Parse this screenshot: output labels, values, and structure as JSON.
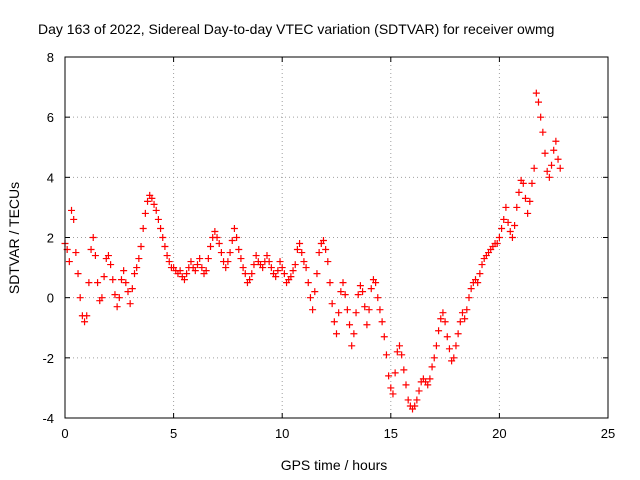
{
  "chart_data": {
    "type": "scatter",
    "title": "Day 163 of 2022, Sidereal Day-to-day VTEC variation (SDTVAR) for receiver owmg",
    "xlabel": "GPS time / hours",
    "ylabel": "SDTVAR / TECUs",
    "xlim": [
      0,
      25
    ],
    "ylim": [
      -4,
      8
    ],
    "x_ticks": [
      "0",
      "5",
      "10",
      "15",
      "20",
      "25"
    ],
    "y_ticks": [
      "-4",
      "-2",
      "0",
      "2",
      "4",
      "6",
      "8"
    ],
    "grid": true,
    "marker": "+",
    "color": "#ff0000",
    "series": [
      {
        "name": "SDTVAR",
        "points": [
          [
            0.0,
            1.8
          ],
          [
            0.1,
            1.6
          ],
          [
            0.2,
            1.2
          ],
          [
            0.3,
            2.9
          ],
          [
            0.4,
            2.6
          ],
          [
            0.5,
            1.5
          ],
          [
            0.6,
            0.8
          ],
          [
            0.7,
            0.0
          ],
          [
            0.8,
            -0.6
          ],
          [
            0.9,
            -0.8
          ],
          [
            1.0,
            -0.6
          ],
          [
            1.1,
            0.5
          ],
          [
            1.2,
            1.6
          ],
          [
            1.3,
            2.0
          ],
          [
            1.4,
            1.4
          ],
          [
            1.5,
            0.5
          ],
          [
            1.6,
            -0.1
          ],
          [
            1.7,
            0.0
          ],
          [
            1.8,
            0.7
          ],
          [
            1.9,
            1.3
          ],
          [
            2.0,
            1.4
          ],
          [
            2.1,
            1.1
          ],
          [
            2.2,
            0.6
          ],
          [
            2.3,
            0.1
          ],
          [
            2.4,
            -0.3
          ],
          [
            2.5,
            0.0
          ],
          [
            2.6,
            0.6
          ],
          [
            2.7,
            0.9
          ],
          [
            2.8,
            0.5
          ],
          [
            2.9,
            0.2
          ],
          [
            3.0,
            -0.2
          ],
          [
            3.1,
            0.3
          ],
          [
            3.2,
            0.8
          ],
          [
            3.3,
            1.0
          ],
          [
            3.4,
            1.3
          ],
          [
            3.5,
            1.7
          ],
          [
            3.6,
            2.3
          ],
          [
            3.7,
            2.8
          ],
          [
            3.8,
            3.2
          ],
          [
            3.9,
            3.4
          ],
          [
            4.0,
            3.3
          ],
          [
            4.1,
            3.1
          ],
          [
            4.2,
            2.9
          ],
          [
            4.3,
            2.6
          ],
          [
            4.4,
            2.3
          ],
          [
            4.5,
            2.0
          ],
          [
            4.6,
            1.7
          ],
          [
            4.7,
            1.4
          ],
          [
            4.8,
            1.2
          ],
          [
            4.9,
            1.0
          ],
          [
            5.0,
            1.0
          ],
          [
            5.1,
            0.9
          ],
          [
            5.2,
            0.8
          ],
          [
            5.3,
            0.9
          ],
          [
            5.4,
            0.7
          ],
          [
            5.5,
            0.6
          ],
          [
            5.6,
            0.8
          ],
          [
            5.7,
            1.0
          ],
          [
            5.8,
            1.2
          ],
          [
            5.9,
            1.0
          ],
          [
            6.0,
            0.9
          ],
          [
            6.1,
            1.1
          ],
          [
            6.2,
            1.3
          ],
          [
            6.3,
            1.0
          ],
          [
            6.4,
            0.8
          ],
          [
            6.5,
            0.9
          ],
          [
            6.6,
            1.3
          ],
          [
            6.7,
            1.7
          ],
          [
            6.8,
            2.0
          ],
          [
            6.9,
            2.2
          ],
          [
            7.0,
            2.0
          ],
          [
            7.1,
            1.8
          ],
          [
            7.2,
            1.5
          ],
          [
            7.3,
            1.2
          ],
          [
            7.4,
            1.0
          ],
          [
            7.5,
            1.2
          ],
          [
            7.6,
            1.5
          ],
          [
            7.7,
            1.9
          ],
          [
            7.8,
            2.3
          ],
          [
            7.9,
            2.0
          ],
          [
            8.0,
            1.6
          ],
          [
            8.1,
            1.3
          ],
          [
            8.2,
            1.0
          ],
          [
            8.3,
            0.8
          ],
          [
            8.4,
            0.5
          ],
          [
            8.5,
            0.6
          ],
          [
            8.6,
            0.8
          ],
          [
            8.7,
            1.1
          ],
          [
            8.8,
            1.4
          ],
          [
            8.9,
            1.2
          ],
          [
            9.0,
            1.1
          ],
          [
            9.1,
            1.0
          ],
          [
            9.2,
            1.2
          ],
          [
            9.3,
            1.4
          ],
          [
            9.4,
            1.2
          ],
          [
            9.5,
            1.0
          ],
          [
            9.6,
            0.8
          ],
          [
            9.7,
            0.7
          ],
          [
            9.8,
            0.9
          ],
          [
            9.9,
            1.2
          ],
          [
            10.0,
            1.0
          ],
          [
            10.1,
            0.8
          ],
          [
            10.2,
            0.5
          ],
          [
            10.3,
            0.6
          ],
          [
            10.4,
            0.7
          ],
          [
            10.5,
            0.9
          ],
          [
            10.6,
            1.1
          ],
          [
            10.7,
            1.6
          ],
          [
            10.8,
            1.8
          ],
          [
            10.9,
            1.5
          ],
          [
            11.0,
            1.2
          ],
          [
            11.1,
            1.0
          ],
          [
            11.2,
            0.5
          ],
          [
            11.3,
            0.0
          ],
          [
            11.4,
            -0.4
          ],
          [
            11.5,
            0.2
          ],
          [
            11.6,
            0.8
          ],
          [
            11.7,
            1.5
          ],
          [
            11.8,
            1.8
          ],
          [
            11.9,
            1.9
          ],
          [
            12.0,
            1.6
          ],
          [
            12.1,
            1.2
          ],
          [
            12.2,
            0.5
          ],
          [
            12.3,
            -0.2
          ],
          [
            12.4,
            -0.8
          ],
          [
            12.5,
            -1.2
          ],
          [
            12.6,
            -0.5
          ],
          [
            12.7,
            0.2
          ],
          [
            12.8,
            0.5
          ],
          [
            12.9,
            0.1
          ],
          [
            13.0,
            -0.4
          ],
          [
            13.1,
            -0.9
          ],
          [
            13.2,
            -1.6
          ],
          [
            13.3,
            -1.2
          ],
          [
            13.4,
            -0.5
          ],
          [
            13.5,
            0.1
          ],
          [
            13.6,
            0.4
          ],
          [
            13.7,
            0.2
          ],
          [
            13.8,
            -0.3
          ],
          [
            13.9,
            -0.9
          ],
          [
            14.0,
            -0.4
          ],
          [
            14.1,
            0.3
          ],
          [
            14.2,
            0.6
          ],
          [
            14.3,
            0.5
          ],
          [
            14.4,
            0.0
          ],
          [
            14.5,
            -0.4
          ],
          [
            14.6,
            -0.8
          ],
          [
            14.7,
            -1.3
          ],
          [
            14.8,
            -1.9
          ],
          [
            14.9,
            -2.6
          ],
          [
            15.0,
            -3.0
          ],
          [
            15.1,
            -3.2
          ],
          [
            15.2,
            -2.5
          ],
          [
            15.3,
            -1.8
          ],
          [
            15.4,
            -1.6
          ],
          [
            15.5,
            -1.9
          ],
          [
            15.6,
            -2.4
          ],
          [
            15.7,
            -2.9
          ],
          [
            15.8,
            -3.4
          ],
          [
            15.9,
            -3.6
          ],
          [
            16.0,
            -3.7
          ],
          [
            16.1,
            -3.6
          ],
          [
            16.2,
            -3.4
          ],
          [
            16.3,
            -3.1
          ],
          [
            16.4,
            -2.8
          ],
          [
            16.5,
            -2.7
          ],
          [
            16.6,
            -2.8
          ],
          [
            16.7,
            -2.9
          ],
          [
            16.8,
            -2.7
          ],
          [
            16.9,
            -2.3
          ],
          [
            17.0,
            -2.0
          ],
          [
            17.1,
            -1.6
          ],
          [
            17.2,
            -1.1
          ],
          [
            17.3,
            -0.7
          ],
          [
            17.4,
            -0.5
          ],
          [
            17.5,
            -0.8
          ],
          [
            17.6,
            -1.3
          ],
          [
            17.7,
            -1.7
          ],
          [
            17.8,
            -2.1
          ],
          [
            17.9,
            -2.0
          ],
          [
            18.0,
            -1.6
          ],
          [
            18.1,
            -1.2
          ],
          [
            18.2,
            -0.8
          ],
          [
            18.3,
            -0.5
          ],
          [
            18.4,
            -0.7
          ],
          [
            18.5,
            -0.4
          ],
          [
            18.6,
            0.0
          ],
          [
            18.7,
            0.3
          ],
          [
            18.8,
            0.5
          ],
          [
            18.9,
            0.6
          ],
          [
            19.0,
            0.5
          ],
          [
            19.1,
            0.8
          ],
          [
            19.2,
            1.1
          ],
          [
            19.3,
            1.3
          ],
          [
            19.4,
            1.4
          ],
          [
            19.5,
            1.5
          ],
          [
            19.6,
            1.6
          ],
          [
            19.7,
            1.7
          ],
          [
            19.8,
            1.8
          ],
          [
            19.9,
            1.8
          ],
          [
            20.0,
            2.0
          ],
          [
            20.1,
            2.3
          ],
          [
            20.2,
            2.6
          ],
          [
            20.3,
            3.0
          ],
          [
            20.4,
            2.5
          ],
          [
            20.5,
            2.2
          ],
          [
            20.6,
            2.0
          ],
          [
            20.7,
            2.4
          ],
          [
            20.8,
            3.0
          ],
          [
            20.9,
            3.5
          ],
          [
            21.0,
            3.9
          ],
          [
            21.1,
            3.8
          ],
          [
            21.2,
            3.3
          ],
          [
            21.3,
            2.8
          ],
          [
            21.4,
            3.2
          ],
          [
            21.5,
            3.8
          ],
          [
            21.6,
            4.3
          ],
          [
            21.7,
            6.8
          ],
          [
            21.8,
            6.5
          ],
          [
            21.9,
            6.0
          ],
          [
            22.0,
            5.5
          ],
          [
            22.1,
            4.8
          ],
          [
            22.2,
            4.2
          ],
          [
            22.3,
            4.0
          ],
          [
            22.4,
            4.4
          ],
          [
            22.5,
            4.9
          ],
          [
            22.6,
            5.2
          ],
          [
            22.7,
            4.6
          ],
          [
            22.8,
            4.3
          ]
        ]
      }
    ]
  }
}
